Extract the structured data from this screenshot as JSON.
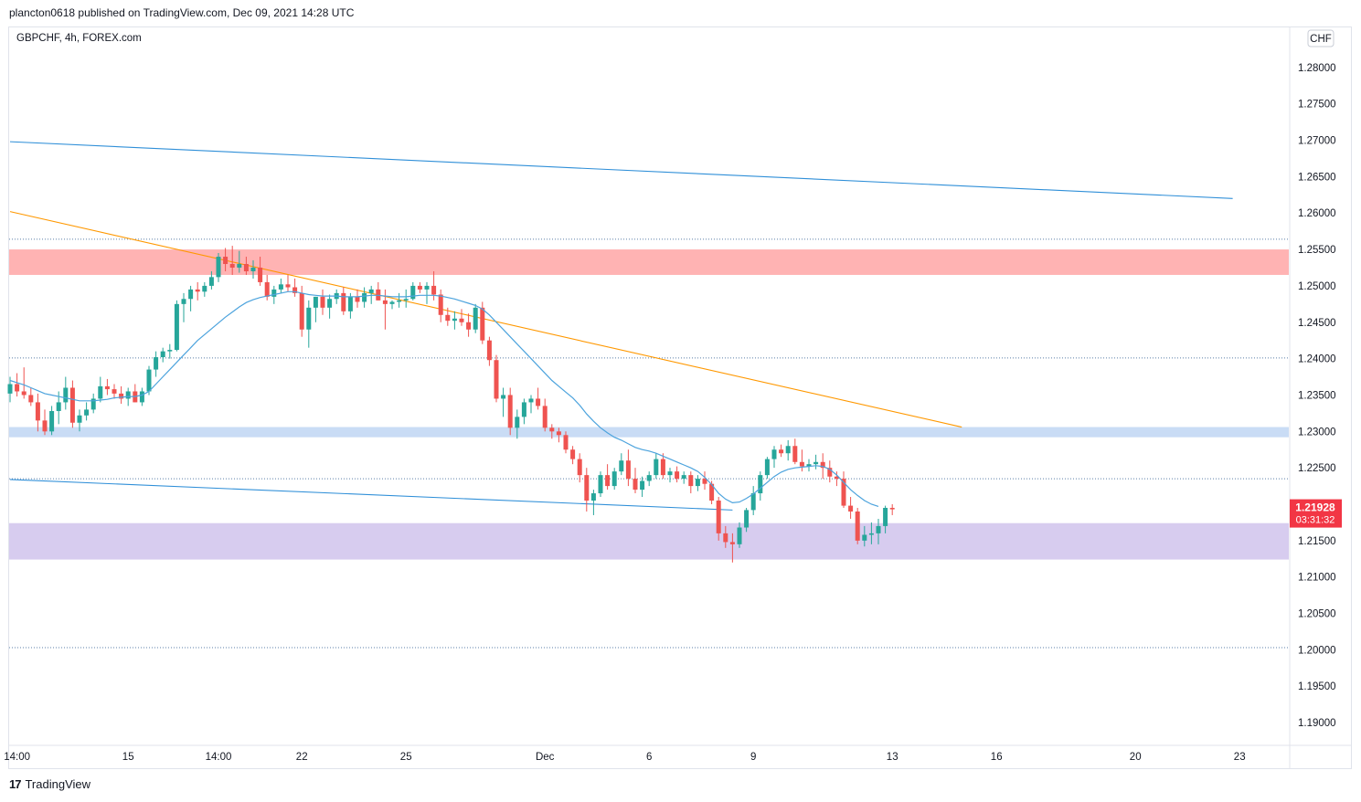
{
  "header": {
    "published_text": "plancton0618 published on TradingView.com, Dec 09, 2021 14:28 UTC"
  },
  "symbol_info": {
    "label": "GBPCHF, 4h, FOREX.com"
  },
  "currency_button": {
    "label": "CHF"
  },
  "footer": {
    "logo_text": "TradingView",
    "logo_icon_glyph": "17"
  },
  "price_tag": {
    "price": "1.21928",
    "countdown": "03:31:32",
    "color": "#f23645"
  },
  "colors": {
    "up_candle": "#26a69a",
    "down_candle": "#ef5350",
    "ma_line": "#4ca3dd",
    "channel_line": "#2f8fd8",
    "trend_line": "#ff9800",
    "resistance_zone": "#ffb3b3",
    "support_zone_blue": "#c9dcf5",
    "support_zone_purple": "#d7ccef"
  },
  "chart_data": {
    "type": "candlestick",
    "price_axis": {
      "range": [
        1.187,
        1.2855
      ],
      "ticks": [
        "1.28000",
        "1.27500",
        "1.27000",
        "1.26500",
        "1.26000",
        "1.25500",
        "1.25000",
        "1.24500",
        "1.24000",
        "1.23500",
        "1.23000",
        "1.22500",
        "1.22000",
        "1.21500",
        "1.21000",
        "1.20500",
        "1.20000",
        "1.19500",
        "1.19000"
      ]
    },
    "time_axis": {
      "ticks": [
        {
          "label": "14:00",
          "bar": 1
        },
        {
          "label": "15",
          "bar": 17
        },
        {
          "label": "14:00",
          "bar": 30
        },
        {
          "label": "22",
          "bar": 42
        },
        {
          "label": "25",
          "bar": 57
        },
        {
          "label": "Dec",
          "bar": 77
        },
        {
          "label": "6",
          "bar": 92
        },
        {
          "label": "9",
          "bar": 107
        },
        {
          "label": "13",
          "bar": 127
        },
        {
          "label": "16",
          "bar": 142
        },
        {
          "label": "20",
          "bar": 162
        },
        {
          "label": "23",
          "bar": 177
        }
      ]
    },
    "zones": [
      {
        "name": "resistance",
        "from": 1.2515,
        "to": 1.255,
        "color": "#ffb3b3"
      },
      {
        "name": "support-blue",
        "from": 1.2292,
        "to": 1.2306,
        "color": "#c9dcf5"
      },
      {
        "name": "support-purple",
        "from": 1.2124,
        "to": 1.2174,
        "color": "#d7ccef"
      }
    ],
    "horizontal_levels": [
      1.2564,
      1.2401,
      1.2235,
      1.2003
    ],
    "lines": [
      {
        "name": "channel-top",
        "color": "#2f8fd8",
        "points": [
          [
            0,
            1.2698
          ],
          [
            176,
            1.262
          ]
        ]
      },
      {
        "name": "channel-bottom",
        "color": "#2f8fd8",
        "points": [
          [
            0,
            1.2234
          ],
          [
            104,
            1.2192
          ]
        ]
      },
      {
        "name": "trend-line",
        "color": "#ff9800",
        "points": [
          [
            0,
            1.2602
          ],
          [
            137,
            1.2306
          ]
        ]
      }
    ],
    "candles": [
      [
        1.2352,
        1.2375,
        1.234,
        1.2365
      ],
      [
        1.2365,
        1.238,
        1.2348,
        1.2355
      ],
      [
        1.2355,
        1.2388,
        1.2345,
        1.235
      ],
      [
        1.235,
        1.236,
        1.2335,
        1.234
      ],
      [
        1.234,
        1.2352,
        1.23,
        1.2315
      ],
      [
        1.2315,
        1.233,
        1.2295,
        1.23
      ],
      [
        1.23,
        1.2335,
        1.2295,
        1.2328
      ],
      [
        1.2328,
        1.2355,
        1.231,
        1.234
      ],
      [
        1.234,
        1.2375,
        1.233,
        1.236
      ],
      [
        1.236,
        1.237,
        1.2305,
        1.2312
      ],
      [
        1.2312,
        1.233,
        1.23,
        1.2322
      ],
      [
        1.2322,
        1.234,
        1.2315,
        1.233
      ],
      [
        1.233,
        1.2352,
        1.2325,
        1.2345
      ],
      [
        1.2345,
        1.2375,
        1.234,
        1.2362
      ],
      [
        1.2362,
        1.2372,
        1.235,
        1.2358
      ],
      [
        1.2358,
        1.2365,
        1.2345,
        1.2352
      ],
      [
        1.2352,
        1.2362,
        1.2338,
        1.2345
      ],
      [
        1.2345,
        1.236,
        1.2335,
        1.2355
      ],
      [
        1.2355,
        1.2365,
        1.234,
        1.234
      ],
      [
        1.234,
        1.236,
        1.2335,
        1.2355
      ],
      [
        1.2355,
        1.239,
        1.235,
        1.2385
      ],
      [
        1.2385,
        1.241,
        1.2375,
        1.2402
      ],
      [
        1.2402,
        1.2415,
        1.2395,
        1.241
      ],
      [
        1.241,
        1.242,
        1.24,
        1.2412
      ],
      [
        1.2412,
        1.248,
        1.241,
        1.2475
      ],
      [
        1.2475,
        1.249,
        1.245,
        1.2482
      ],
      [
        1.2482,
        1.25,
        1.2465,
        1.2495
      ],
      [
        1.2495,
        1.2505,
        1.248,
        1.2492
      ],
      [
        1.2492,
        1.2505,
        1.2485,
        1.25
      ],
      [
        1.25,
        1.252,
        1.2495,
        1.2512
      ],
      [
        1.2512,
        1.2545,
        1.2505,
        1.254
      ],
      [
        1.254,
        1.2552,
        1.252,
        1.253
      ],
      [
        1.253,
        1.2555,
        1.2515,
        1.2525
      ],
      [
        1.2525,
        1.2548,
        1.2518,
        1.253
      ],
      [
        1.253,
        1.254,
        1.2515,
        1.252
      ],
      [
        1.252,
        1.2535,
        1.251,
        1.2525
      ],
      [
        1.2525,
        1.254,
        1.25,
        1.2505
      ],
      [
        1.2505,
        1.2515,
        1.248,
        1.2485
      ],
      [
        1.2485,
        1.25,
        1.2475,
        1.2495
      ],
      [
        1.2495,
        1.251,
        1.249,
        1.2502
      ],
      [
        1.2502,
        1.2515,
        1.2492,
        1.2498
      ],
      [
        1.2498,
        1.251,
        1.2485,
        1.249
      ],
      [
        1.249,
        1.25,
        1.243,
        1.244
      ],
      [
        1.244,
        1.248,
        1.2415,
        1.247
      ],
      [
        1.247,
        1.2485,
        1.245,
        1.2485
      ],
      [
        1.2485,
        1.2495,
        1.246,
        1.247
      ],
      [
        1.247,
        1.2488,
        1.2455,
        1.2482
      ],
      [
        1.2482,
        1.2495,
        1.2475,
        1.249
      ],
      [
        1.249,
        1.2498,
        1.246,
        1.2465
      ],
      [
        1.2465,
        1.249,
        1.2455,
        1.2485
      ],
      [
        1.2485,
        1.2495,
        1.247,
        1.2478
      ],
      [
        1.2478,
        1.2498,
        1.247,
        1.249
      ],
      [
        1.249,
        1.25,
        1.2475,
        1.2495
      ],
      [
        1.2495,
        1.2505,
        1.248,
        1.248
      ],
      [
        1.248,
        1.2495,
        1.244,
        1.2475
      ],
      [
        1.2475,
        1.248,
        1.2468,
        1.2478
      ],
      [
        1.2478,
        1.249,
        1.247,
        1.248
      ],
      [
        1.248,
        1.2495,
        1.247,
        1.2482
      ],
      [
        1.2482,
        1.2505,
        1.248,
        1.25
      ],
      [
        1.25,
        1.2505,
        1.249,
        1.2495
      ],
      [
        1.2495,
        1.2505,
        1.2475,
        1.25
      ],
      [
        1.25,
        1.252,
        1.248,
        1.2488
      ],
      [
        1.2488,
        1.2495,
        1.245,
        1.246
      ],
      [
        1.246,
        1.247,
        1.2445,
        1.2452
      ],
      [
        1.2452,
        1.2465,
        1.244,
        1.2455
      ],
      [
        1.2455,
        1.2468,
        1.2445,
        1.245
      ],
      [
        1.245,
        1.2462,
        1.243,
        1.244
      ],
      [
        1.244,
        1.2475,
        1.2435,
        1.247
      ],
      [
        1.247,
        1.2478,
        1.242,
        1.2425
      ],
      [
        1.2425,
        1.243,
        1.239,
        1.2398
      ],
      [
        1.2398,
        1.2405,
        1.234,
        1.2345
      ],
      [
        1.2345,
        1.236,
        1.232,
        1.235
      ],
      [
        1.235,
        1.236,
        1.2295,
        1.2305
      ],
      [
        1.2305,
        1.233,
        1.229,
        1.232
      ],
      [
        1.232,
        1.2345,
        1.231,
        1.234
      ],
      [
        1.234,
        1.235,
        1.2325,
        1.2345
      ],
      [
        1.2345,
        1.236,
        1.233,
        1.2335
      ],
      [
        1.2335,
        1.2345,
        1.23,
        1.2305
      ],
      [
        1.2305,
        1.231,
        1.229,
        1.23
      ],
      [
        1.23,
        1.2305,
        1.2285,
        1.2295
      ],
      [
        1.2295,
        1.23,
        1.227,
        1.2275
      ],
      [
        1.2275,
        1.228,
        1.2255,
        1.2262
      ],
      [
        1.2262,
        1.227,
        1.223,
        1.224
      ],
      [
        1.224,
        1.225,
        1.219,
        1.2205
      ],
      [
        1.2205,
        1.222,
        1.2185,
        1.2215
      ],
      [
        1.2215,
        1.2245,
        1.221,
        1.224
      ],
      [
        1.224,
        1.2255,
        1.222,
        1.2225
      ],
      [
        1.2225,
        1.225,
        1.222,
        1.2245
      ],
      [
        1.2245,
        1.227,
        1.224,
        1.226
      ],
      [
        1.226,
        1.2275,
        1.2225,
        1.2235
      ],
      [
        1.2235,
        1.225,
        1.2215,
        1.222
      ],
      [
        1.222,
        1.2238,
        1.221,
        1.2232
      ],
      [
        1.2232,
        1.2245,
        1.2225,
        1.224
      ],
      [
        1.224,
        1.227,
        1.2235,
        1.2262
      ],
      [
        1.2262,
        1.227,
        1.2235,
        1.224
      ],
      [
        1.224,
        1.225,
        1.223,
        1.2245
      ],
      [
        1.2245,
        1.2252,
        1.223,
        1.2235
      ],
      [
        1.2235,
        1.2245,
        1.2228,
        1.224
      ],
      [
        1.224,
        1.2245,
        1.2215,
        1.2225
      ],
      [
        1.2225,
        1.224,
        1.2218,
        1.2235
      ],
      [
        1.2235,
        1.2245,
        1.222,
        1.2228
      ],
      [
        1.2228,
        1.2232,
        1.22,
        1.2205
      ],
      [
        1.2205,
        1.221,
        1.215,
        1.216
      ],
      [
        1.216,
        1.217,
        1.214,
        1.2148
      ],
      [
        1.2148,
        1.216,
        1.212,
        1.2145
      ],
      [
        1.2145,
        1.2175,
        1.214,
        1.2168
      ],
      [
        1.2168,
        1.2195,
        1.2162,
        1.2192
      ],
      [
        1.2192,
        1.2225,
        1.2185,
        1.2215
      ],
      [
        1.2215,
        1.2245,
        1.2205,
        1.224
      ],
      [
        1.224,
        1.2265,
        1.2235,
        1.2262
      ],
      [
        1.2262,
        1.228,
        1.225,
        1.2275
      ],
      [
        1.2275,
        1.2282,
        1.2265,
        1.227
      ],
      [
        1.227,
        1.2288,
        1.226,
        1.228
      ],
      [
        1.228,
        1.229,
        1.2255,
        1.2258
      ],
      [
        1.2258,
        1.2275,
        1.2245,
        1.2252
      ],
      [
        1.2252,
        1.2262,
        1.2245,
        1.2255
      ],
      [
        1.2255,
        1.2268,
        1.2248,
        1.2258
      ],
      [
        1.2258,
        1.227,
        1.2235,
        1.225
      ],
      [
        1.225,
        1.226,
        1.223,
        1.2238
      ],
      [
        1.2238,
        1.2245,
        1.2225,
        1.2235
      ],
      [
        1.2235,
        1.2245,
        1.2195,
        1.2198
      ],
      [
        1.2198,
        1.221,
        1.218,
        1.219
      ],
      [
        1.219,
        1.2195,
        1.2145,
        1.215
      ],
      [
        1.215,
        1.217,
        1.2142,
        1.2158
      ],
      [
        1.2158,
        1.2175,
        1.2145,
        1.216
      ],
      [
        1.216,
        1.218,
        1.2145,
        1.217
      ],
      [
        1.217,
        1.2198,
        1.216,
        1.2195
      ],
      [
        1.2195,
        1.22,
        1.2185,
        1.2193
      ]
    ],
    "ma": [
      1.237,
      1.2367,
      1.2364,
      1.236,
      1.2356,
      1.2352,
      1.235,
      1.2348,
      1.2346,
      1.2344,
      1.2342,
      1.2342,
      1.2342,
      1.2343,
      1.2344,
      1.2346,
      1.2347,
      1.2348,
      1.2348,
      1.235,
      1.2355,
      1.2365,
      1.2375,
      1.2385,
      1.2395,
      1.2405,
      1.2415,
      1.2425,
      1.2433,
      1.2441,
      1.2449,
      1.2457,
      1.2464,
      1.2471,
      1.2477,
      1.2481,
      1.2484,
      1.2486,
      1.2488,
      1.249,
      1.2492,
      1.2492,
      1.249,
      1.2488,
      1.2487,
      1.2486,
      1.2486,
      1.2486,
      1.2485,
      1.2485,
      1.2485,
      1.2486,
      1.2487,
      1.2487,
      1.2486,
      1.2485,
      1.2485,
      1.2485,
      1.2486,
      1.2487,
      1.2487,
      1.2487,
      1.2486,
      1.2484,
      1.2482,
      1.2479,
      1.2476,
      1.2473,
      1.2468,
      1.246,
      1.245,
      1.244,
      1.243,
      1.242,
      1.241,
      1.24,
      1.239,
      1.238,
      1.237,
      1.2362,
      1.2354,
      1.2346,
      1.2336,
      1.2324,
      1.2314,
      1.2305,
      1.2298,
      1.2292,
      1.2288,
      1.2283,
      1.2278,
      1.2275,
      1.2273,
      1.227,
      1.2266,
      1.2262,
      1.2258,
      1.2254,
      1.225,
      1.2245,
      1.2237,
      1.2227,
      1.2215,
      1.2207,
      1.2202,
      1.2203,
      1.2208,
      1.2214,
      1.2222,
      1.223,
      1.2238,
      1.2244,
      1.2248,
      1.225,
      1.2251,
      1.2252,
      1.2253,
      1.2252,
      1.2248,
      1.224,
      1.223,
      1.222,
      1.2212,
      1.2205,
      1.22,
      1.2197
    ]
  }
}
